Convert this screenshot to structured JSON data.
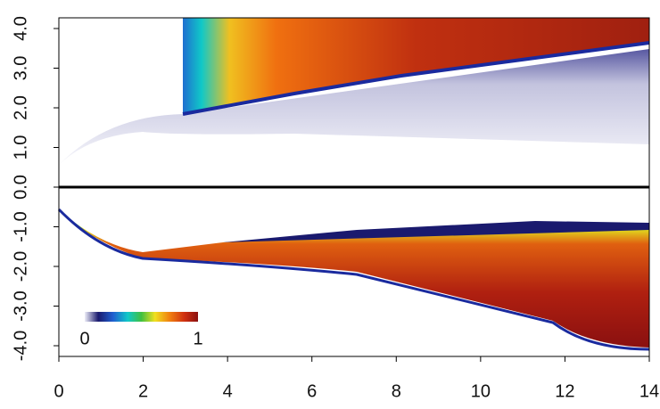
{
  "chart_data": {
    "type": "field",
    "xlim": [
      0,
      14
    ],
    "xticks": [
      0,
      2,
      4,
      6,
      8,
      10,
      12,
      14
    ],
    "ylim": [
      -4.27,
      4.27
    ],
    "yticks": [
      {
        "value": -4,
        "label": "-4.0"
      },
      {
        "value": -3,
        "label": "-3.0"
      },
      {
        "value": -2,
        "label": "-2.0"
      },
      {
        "value": -1,
        "label": "-1.0"
      },
      {
        "value": 0,
        "label": "0.0"
      },
      {
        "value": 1,
        "label": "1.0"
      },
      {
        "value": 2,
        "label": "2.0"
      },
      {
        "value": 3,
        "label": "3.0"
      },
      {
        "value": 4,
        "label": "4.0"
      }
    ],
    "colorbar": {
      "lim": [
        0,
        1
      ],
      "ticks": [
        0,
        1
      ]
    }
  }
}
